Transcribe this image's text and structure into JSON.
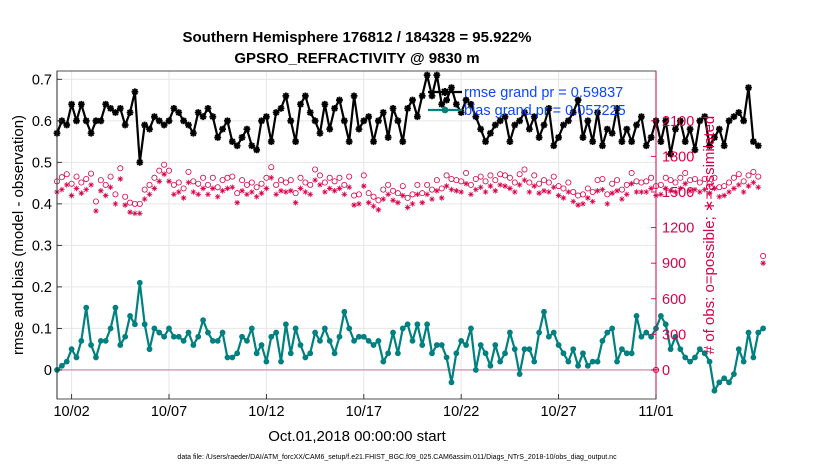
{
  "chart_data": {
    "type": "line",
    "title": "Southern Hemisphere 176812 / 184328 = 95.922%",
    "subtitle": "GPSRO_REFRACTIVITY @ 9830 m",
    "xlabel": "Oct.01,2018 00:00:00 start",
    "ylabel": "rmse and bias (model - observation)",
    "ylabel_right": "# of obs: o=possible; ∗=assimilated",
    "footnote": "data file: /Users/raeder/DAI/ATM_forcXX/CAM6_setup/f.e21.FHIST_BGC.f09_025.CAM6assim.011/Diags_NTrS_2018-10/obs_diag_output.nc",
    "x_ticks": [
      "10/02",
      "10/07",
      "10/12",
      "10/17",
      "10/22",
      "10/27",
      "11/01"
    ],
    "x_tick_days": [
      1,
      6,
      11,
      16,
      21,
      26,
      31
    ],
    "xlim": [
      0.25,
      31.0
    ],
    "ylim": [
      -0.07,
      0.72
    ],
    "y_ticks": [
      "0",
      "0.1",
      "0.2",
      "0.3",
      "0.4",
      "0.5",
      "0.6",
      "0.7"
    ],
    "y_tick_values": [
      0,
      0.1,
      0.2,
      0.3,
      0.4,
      0.5,
      0.6,
      0.7
    ],
    "ylim_right": [
      -245,
      2520
    ],
    "y_ticks_right": [
      "0",
      "300",
      "600",
      "900",
      "1200",
      "1500",
      "1800",
      "2100"
    ],
    "y_tick_values_right": [
      0,
      300,
      600,
      900,
      1200,
      1500,
      1800,
      2100
    ],
    "x_start": 0.25,
    "x_step": 0.25,
    "series": [
      {
        "name": "rmse grand pr = 0.59837",
        "color": "#000000",
        "marker": "star",
        "axis": "left",
        "values": [
          0.57,
          0.6,
          0.59,
          0.64,
          0.6,
          0.64,
          0.6,
          0.57,
          0.6,
          0.6,
          0.64,
          0.63,
          0.62,
          0.63,
          0.59,
          0.62,
          0.67,
          0.5,
          0.59,
          0.58,
          0.61,
          0.6,
          0.59,
          0.6,
          0.63,
          0.62,
          0.6,
          0.59,
          0.57,
          0.62,
          0.61,
          0.63,
          0.61,
          0.56,
          0.58,
          0.6,
          0.55,
          0.54,
          0.56,
          0.58,
          0.54,
          0.53,
          0.6,
          0.61,
          0.55,
          0.62,
          0.63,
          0.66,
          0.6,
          0.55,
          0.64,
          0.66,
          0.62,
          0.6,
          0.57,
          0.64,
          0.58,
          0.63,
          0.65,
          0.6,
          0.55,
          0.66,
          0.58,
          0.6,
          0.61,
          0.55,
          0.6,
          0.62,
          0.56,
          0.63,
          0.6,
          0.55,
          0.63,
          0.65,
          0.61,
          0.66,
          0.71,
          0.66,
          0.71,
          0.64,
          0.65,
          0.68,
          0.64,
          0.62,
          0.65,
          0.64,
          0.61,
          0.58,
          0.55,
          0.57,
          0.59,
          0.6,
          0.61,
          0.55,
          0.59,
          0.6,
          0.62,
          0.58,
          0.61,
          0.56,
          0.59,
          0.63,
          0.54,
          0.56,
          0.59,
          0.6,
          0.62,
          0.65,
          0.56,
          0.6,
          0.55,
          0.62,
          0.54,
          0.58,
          0.57,
          0.63,
          0.55,
          0.58,
          0.55,
          0.59,
          0.61,
          0.54,
          0.56,
          0.6,
          0.55,
          0.6,
          0.52,
          0.58,
          0.6,
          0.55,
          0.58,
          0.53,
          0.6,
          0.61,
          0.54,
          0.56,
          0.58,
          0.54,
          0.6,
          0.61,
          0.62,
          0.6,
          0.68,
          0.55,
          0.54
        ]
      },
      {
        "name": "bias grand pr = 0.057225",
        "color": "#00807f",
        "marker": "dot",
        "axis": "left",
        "values": [
          0.0,
          0.01,
          0.02,
          0.05,
          0.03,
          0.07,
          0.15,
          0.06,
          0.03,
          0.07,
          0.07,
          0.1,
          0.15,
          0.06,
          0.08,
          0.13,
          0.11,
          0.21,
          0.11,
          0.05,
          0.1,
          0.09,
          0.08,
          0.1,
          0.08,
          0.08,
          0.07,
          0.09,
          0.06,
          0.08,
          0.12,
          0.09,
          0.07,
          0.07,
          0.09,
          0.03,
          0.03,
          0.04,
          0.08,
          0.07,
          0.1,
          0.04,
          0.06,
          0.02,
          0.08,
          0.09,
          0.02,
          0.11,
          0.04,
          0.1,
          0.06,
          0.03,
          0.04,
          0.09,
          0.07,
          0.1,
          0.07,
          0.04,
          0.08,
          0.14,
          0.1,
          0.07,
          0.08,
          0.08,
          0.07,
          0.06,
          0.07,
          0.02,
          0.04,
          0.09,
          0.04,
          0.1,
          0.11,
          0.07,
          0.11,
          0.06,
          0.11,
          0.04,
          0.06,
          0.06,
          0.03,
          -0.03,
          0.04,
          0.07,
          0.06,
          0.1,
          0.0,
          0.06,
          0.04,
          0.01,
          0.06,
          0.02,
          0.04,
          0.09,
          0.05,
          -0.01,
          0.05,
          0.05,
          0.02,
          0.09,
          0.14,
          0.08,
          0.09,
          0.06,
          0.04,
          0.02,
          0.05,
          0.01,
          0.04,
          0.01,
          0.02,
          0.02,
          0.07,
          0.09,
          0.1,
          0.02,
          0.05,
          0.04,
          0.04,
          0.13,
          0.08,
          0.09,
          0.08,
          0.1,
          0.13,
          0.11,
          0.05,
          0.08,
          0.05,
          0.03,
          0.02,
          0.03,
          0.05,
          0.04,
          0.02,
          -0.05,
          -0.03,
          -0.02,
          -0.03,
          -0.01,
          0.05,
          0.02,
          0.09,
          0.03,
          0.09,
          0.1
        ]
      }
    ],
    "obs_possible": {
      "name": "# of obs possible",
      "color": "#d8004a",
      "marker": "circle",
      "axis": "right",
      "values": [
        1590,
        1625,
        1650,
        1570,
        1630,
        1580,
        1610,
        1655,
        1420,
        1600,
        1560,
        1630,
        1480,
        1700,
        1460,
        1410,
        1400,
        1400,
        1520,
        1560,
        1620,
        1680,
        1730,
        1680,
        1560,
        1580,
        1530,
        1670,
        1590,
        1570,
        1620,
        1560,
        1620,
        1540,
        1600,
        1620,
        1630,
        1490,
        1600,
        1560,
        1580,
        1540,
        1570,
        1620,
        1710,
        1560,
        1600,
        1580,
        1600,
        1490,
        1620,
        1580,
        1560,
        1690,
        1640,
        1580,
        1620,
        1590,
        1620,
        1560,
        1630,
        1470,
        1480,
        1640,
        1490,
        1460,
        1430,
        1520,
        1560,
        1510,
        1490,
        1550,
        1450,
        1480,
        1560,
        1490,
        1560,
        1520,
        1600,
        1530,
        1640,
        1610,
        1600,
        1590,
        1660,
        1560,
        1610,
        1630,
        1590,
        1640,
        1600,
        1650,
        1640,
        1620,
        1580,
        1650,
        1690,
        1580,
        1640,
        1570,
        1600,
        1580,
        1630,
        1550,
        1530,
        1580,
        1500,
        1470,
        1480,
        1530,
        1500,
        1600,
        1610,
        1480,
        1570,
        1600,
        1520,
        1560,
        1660,
        1590,
        1580,
        1590,
        1620,
        1550,
        1560,
        1620,
        1600,
        1580,
        1620,
        1660,
        1600,
        1610,
        1580,
        1610,
        1570,
        1620,
        1540,
        1550,
        1580,
        1620,
        1650,
        1590,
        1640,
        1670,
        1630,
        960
      ]
    },
    "obs_assimilated": {
      "name": "# of obs assimilated",
      "color": "#d8004a",
      "marker": "asterisk",
      "axis": "right",
      "values": [
        1500,
        1520,
        1560,
        1470,
        1530,
        1490,
        1520,
        1560,
        1340,
        1510,
        1470,
        1540,
        1400,
        1610,
        1390,
        1330,
        1320,
        1320,
        1440,
        1480,
        1530,
        1590,
        1650,
        1590,
        1480,
        1500,
        1450,
        1580,
        1500,
        1480,
        1530,
        1480,
        1530,
        1460,
        1510,
        1530,
        1540,
        1410,
        1510,
        1480,
        1500,
        1460,
        1490,
        1530,
        1620,
        1480,
        1510,
        1500,
        1510,
        1410,
        1530,
        1500,
        1480,
        1600,
        1560,
        1500,
        1530,
        1510,
        1530,
        1480,
        1540,
        1390,
        1400,
        1550,
        1410,
        1380,
        1350,
        1440,
        1480,
        1430,
        1410,
        1470,
        1370,
        1400,
        1480,
        1410,
        1480,
        1440,
        1510,
        1450,
        1550,
        1520,
        1510,
        1500,
        1570,
        1480,
        1520,
        1540,
        1500,
        1550,
        1510,
        1560,
        1550,
        1530,
        1500,
        1560,
        1600,
        1500,
        1550,
        1490,
        1510,
        1500,
        1540,
        1470,
        1450,
        1500,
        1420,
        1390,
        1400,
        1450,
        1420,
        1510,
        1520,
        1400,
        1490,
        1510,
        1440,
        1480,
        1570,
        1500,
        1500,
        1500,
        1530,
        1470,
        1480,
        1530,
        1510,
        1500,
        1530,
        1570,
        1510,
        1520,
        1500,
        1520,
        1490,
        1530,
        1460,
        1470,
        1500,
        1530,
        1560,
        1500,
        1550,
        1580,
        1540,
        900
      ]
    },
    "legend": {
      "position": "top-right",
      "entries": [
        "rmse grand pr = 0.59837",
        "bias grand pr = 0.057225"
      ]
    },
    "grid": true
  }
}
